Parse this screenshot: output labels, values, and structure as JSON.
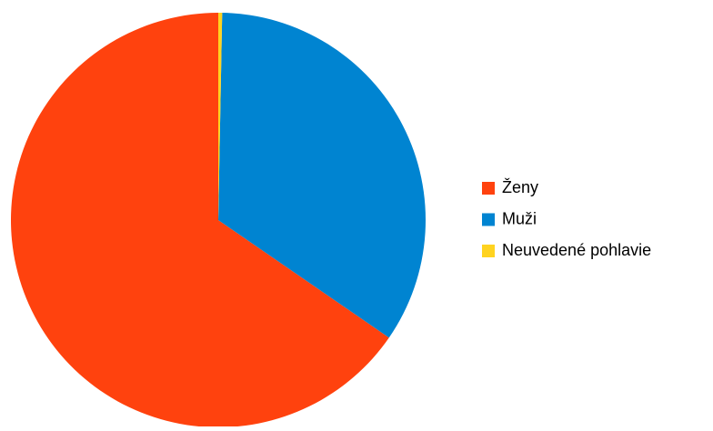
{
  "chart_data": {
    "type": "pie",
    "categories": [
      "Ženy",
      "Muži",
      "Neuvedené pohlavie"
    ],
    "values": [
      65.4,
      34.3,
      0.3
    ],
    "colors": [
      "#ff420e",
      "#0084d1",
      "#ffd320"
    ],
    "direction": "counterclockwise",
    "legend": "right"
  }
}
